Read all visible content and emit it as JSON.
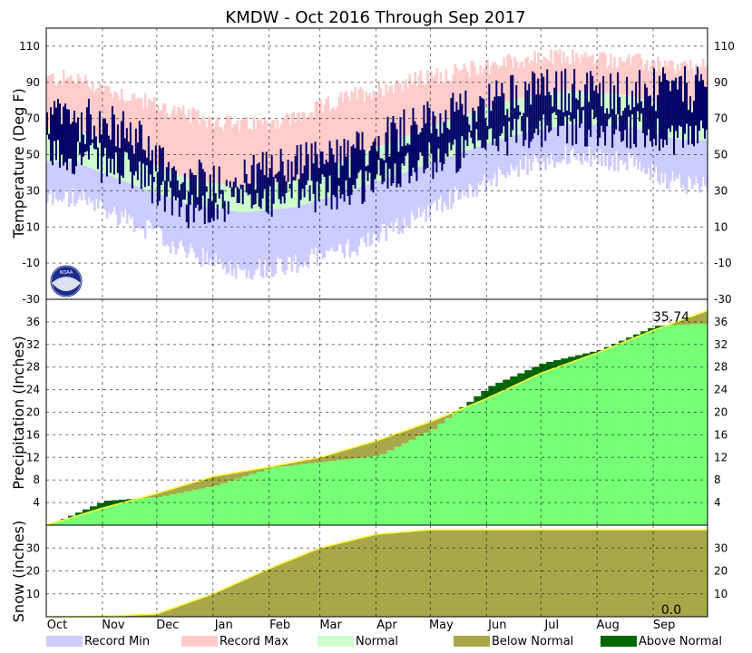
{
  "chart_data": [
    {
      "type": "area",
      "panel": "temperature",
      "title": "KMDW - Oct 2016 Through Sep 2017",
      "ylabel": "Temperature (Deg F)",
      "ylim": [
        -30,
        120
      ],
      "yticks": [
        "-30",
        "-10",
        "10",
        "30",
        "50",
        "70",
        "90",
        "110"
      ],
      "grid": true,
      "months": [
        "Oct",
        "Nov",
        "Dec",
        "Jan",
        "Feb",
        "Mar",
        "Apr",
        "May",
        "Jun",
        "Jul",
        "Aug",
        "Sep"
      ],
      "record_max_monthly": [
        92,
        82,
        72,
        66,
        70,
        82,
        90,
        96,
        102,
        104,
        102,
        98
      ],
      "record_min_monthly": [
        26,
        14,
        -4,
        -14,
        -10,
        -2,
        12,
        28,
        42,
        50,
        46,
        34
      ],
      "normal_high_monthly": [
        64,
        50,
        37,
        32,
        36,
        48,
        60,
        71,
        81,
        85,
        83,
        76
      ],
      "normal_low_monthly": [
        46,
        34,
        23,
        18,
        21,
        30,
        40,
        51,
        61,
        67,
        66,
        58
      ],
      "observed_high_monthly": [
        70,
        62,
        34,
        36,
        45,
        48,
        66,
        72,
        84,
        86,
        84,
        86
      ],
      "observed_low_monthly": [
        50,
        40,
        20,
        24,
        28,
        30,
        44,
        50,
        62,
        66,
        64,
        60
      ]
    },
    {
      "type": "area",
      "panel": "precipitation",
      "ylabel": "Precipitation (Inches)",
      "ylim": [
        0,
        40
      ],
      "yticks": [
        "4",
        "8",
        "12",
        "16",
        "20",
        "24",
        "28",
        "32",
        "36"
      ],
      "grid": true,
      "normal_cumulative_month_start": [
        0,
        3.0,
        5.6,
        8.6,
        10.3,
        12.0,
        14.9,
        18.3,
        22.4,
        26.9,
        30.5,
        34.5,
        38.0
      ],
      "observed_cumulative_month_start": [
        0,
        4.3,
        5.0,
        7.0,
        10.2,
        11.2,
        12.3,
        17.0,
        24.5,
        28.7,
        31.0,
        35.3,
        35.74
      ],
      "final_value_label": "35.74"
    },
    {
      "type": "area",
      "panel": "snow",
      "ylabel": "Snow (inches)",
      "ylim": [
        0,
        40
      ],
      "yticks": [
        "10",
        "20",
        "30"
      ],
      "grid": true,
      "normal_cumulative_month_start": [
        0,
        0.2,
        1.2,
        10.0,
        21.0,
        30.0,
        36.0,
        38.0,
        38.0,
        38.0,
        38.0,
        38.0,
        38.0
      ],
      "observed_total_label": "0.0"
    }
  ],
  "legend": [
    {
      "label": "Record Min",
      "color": "#ccccff"
    },
    {
      "label": "Record Max",
      "color": "#ffcccc"
    },
    {
      "label": "Normal",
      "color": "#ccffcc"
    },
    {
      "label": "Below Normal",
      "color": "#a8a84a"
    },
    {
      "label": "Above Normal",
      "color": "#006600"
    }
  ],
  "colors": {
    "record_min": "#ccccff",
    "record_max": "#ffcccc",
    "normal": "#ccffcc",
    "observed_temp": "#000066",
    "precip_observed": "#77ff77",
    "below_normal": "#a8a84a",
    "above_normal": "#006600",
    "normal_line": "#ffff33"
  },
  "logo_text": "NOAA"
}
